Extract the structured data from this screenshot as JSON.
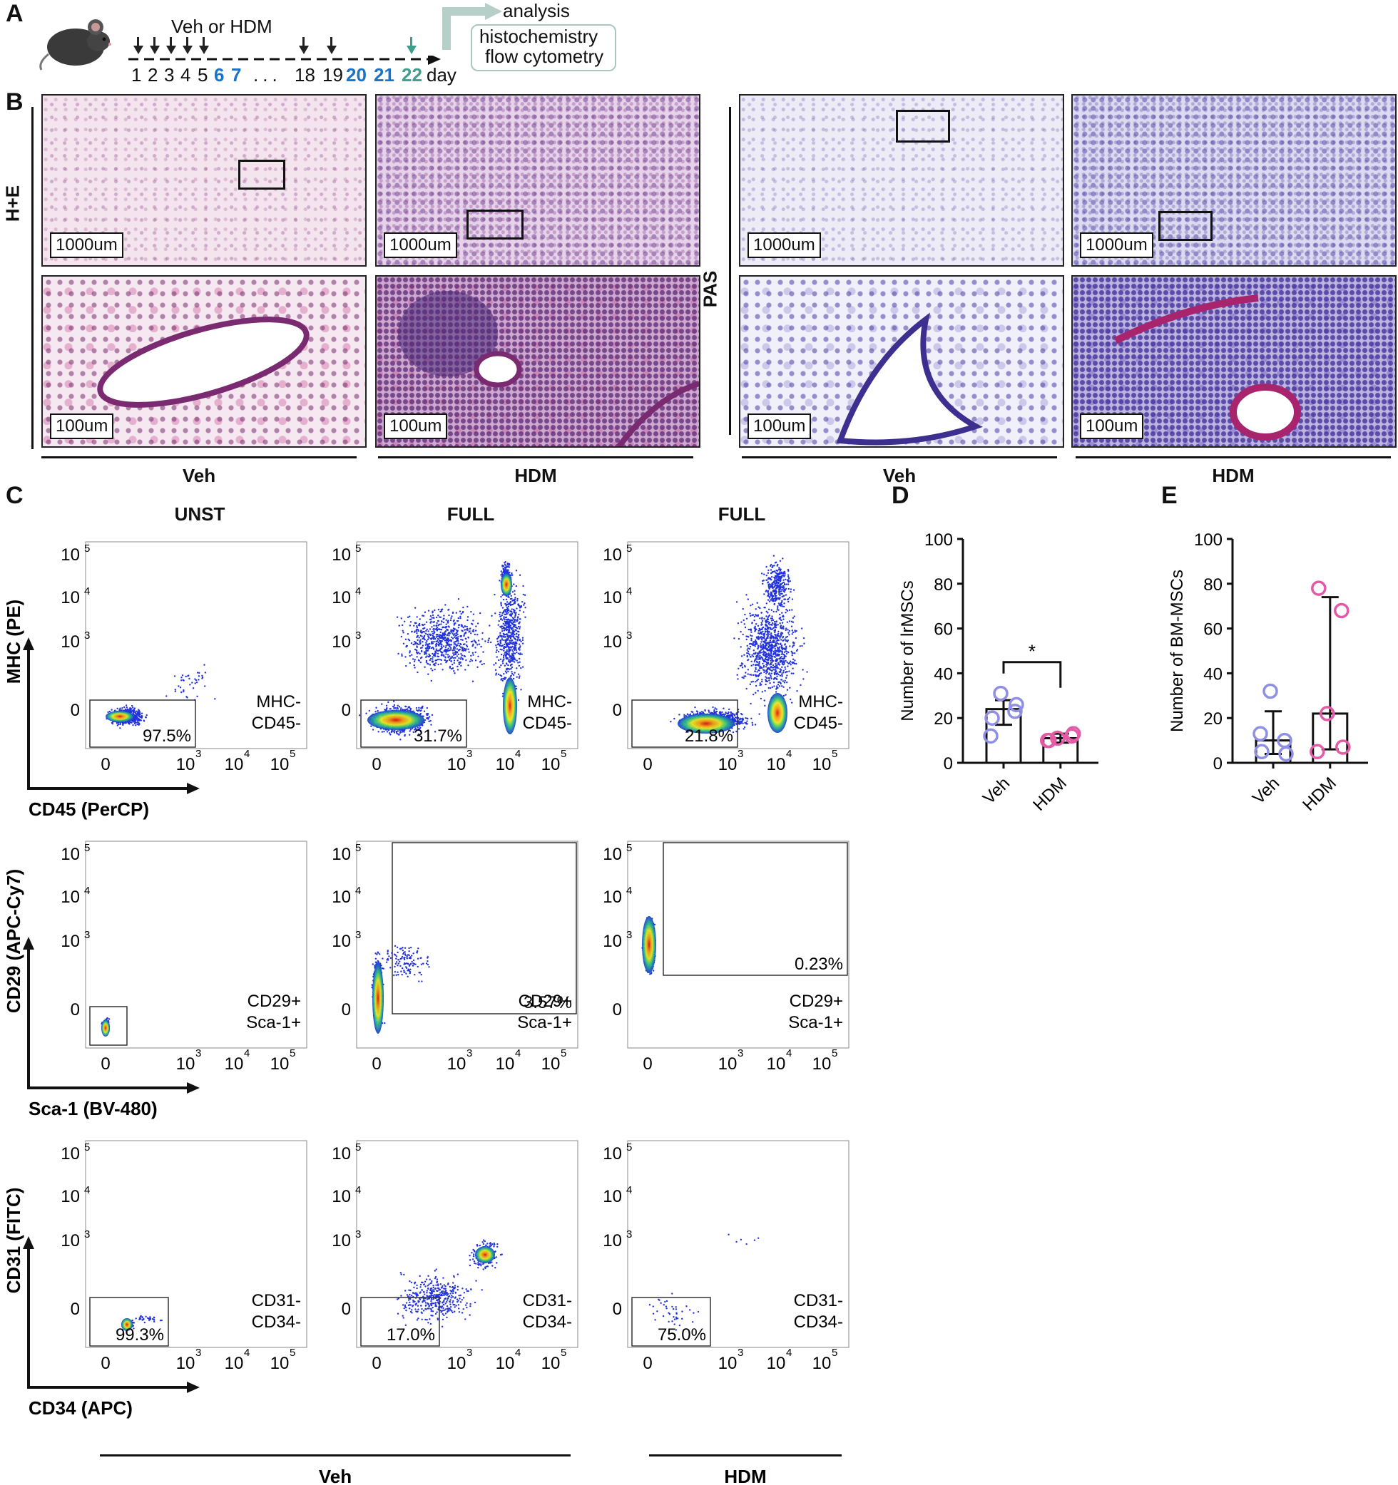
{
  "colors": {
    "blue_day": "#1a73c9",
    "green_day": "#3f9e8c",
    "veh_point": "#8f8fe6",
    "hdm_point": "#e35aa5"
  },
  "panel_a": {
    "letter": "A",
    "treatment": "Veh or HDM",
    "days": [
      "1",
      "2",
      "3",
      "4",
      "5",
      "6",
      "7",
      "...",
      "18",
      "19",
      "20",
      "21",
      "22"
    ],
    "day_label": "day",
    "analysis_label": "analysis",
    "methods": [
      "histochemistry",
      "flow cytometry"
    ],
    "mouse_icon": "mouse-icon",
    "dose_arrow_icon": "down-arrow-icon"
  },
  "panel_b": {
    "letter": "B",
    "stains": [
      "H+E",
      "PAS"
    ],
    "groups": [
      "Veh",
      "HDM"
    ],
    "scale_low": "1000um",
    "scale_high": "100um"
  },
  "panel_c": {
    "letter": "C",
    "columns": [
      "UNST",
      "FULL",
      "FULL"
    ],
    "rows": [
      {
        "y_axis": "MHC (PE)",
        "x_axis": "CD45 (PerCP)",
        "gate": [
          "MHC-",
          "CD45-"
        ],
        "percents": [
          "97.5%",
          "31.7%",
          "21.8%"
        ]
      },
      {
        "y_axis": "CD29 (APC-Cy7)",
        "x_axis": "Sca-1 (BV-480)",
        "gate": [
          "CD29+",
          "Sca-1+"
        ],
        "percents": [
          "",
          "3.57%",
          "0.23%"
        ]
      },
      {
        "y_axis": "CD31 (FITC)",
        "x_axis": "CD34 (APC)",
        "gate": [
          "CD31-",
          "CD34-"
        ],
        "percents": [
          "99.3%",
          "17.0%",
          "75.0%"
        ]
      }
    ],
    "bottom_groups": [
      "Veh",
      "HDM"
    ]
  },
  "chart_data": [
    {
      "panel": "D",
      "type": "bar",
      "ylabel": "Number of lrMSCs",
      "categories": [
        "Veh",
        "HDM"
      ],
      "ylim": [
        0,
        100
      ],
      "yticks": [
        "0",
        "20",
        "40",
        "60",
        "80",
        "100"
      ],
      "bar_values": [
        24,
        11
      ],
      "error": [
        [
          17,
          28
        ],
        [
          9,
          13
        ]
      ],
      "points": [
        [
          20,
          23,
          31,
          26,
          12
        ],
        [
          10,
          12,
          11,
          13,
          10
        ]
      ],
      "significance": "*"
    },
    {
      "panel": "E",
      "type": "bar",
      "ylabel": "Number of BM-MSCs",
      "categories": [
        "Veh",
        "HDM"
      ],
      "ylim": [
        0,
        100
      ],
      "yticks": [
        "0",
        "20",
        "40",
        "60",
        "80",
        "100"
      ],
      "bar_values": [
        10,
        22
      ],
      "error": [
        [
          4,
          23
        ],
        [
          6,
          74
        ]
      ],
      "points": [
        [
          5,
          10,
          32,
          4,
          13
        ],
        [
          78,
          68,
          22,
          7,
          5
        ]
      ]
    }
  ]
}
